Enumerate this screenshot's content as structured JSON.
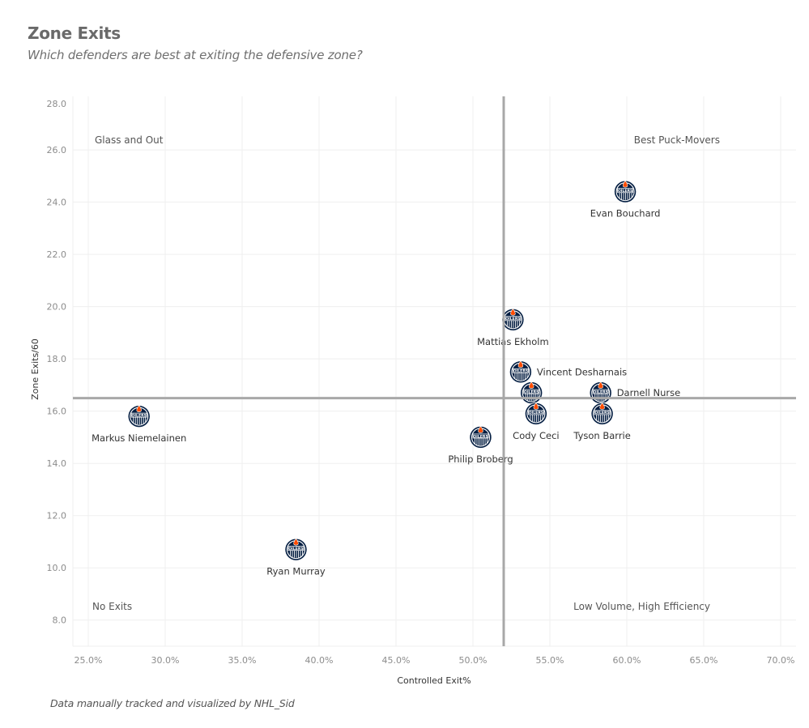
{
  "header": {
    "title": "Zone Exits",
    "subtitle": "Which defenders are best at exiting the defensive zone?"
  },
  "footer": {
    "credit": "Data manually tracked  and visualized by NHL_Sid"
  },
  "colors": {
    "logo_navy": "#041E42",
    "logo_orange": "#FF4C00",
    "reference_line": "#a8a8a8",
    "gridline": "#efefef"
  },
  "chart_data": {
    "type": "scatter",
    "title": "Zone Exits",
    "subtitle": "Which defenders are best at exiting the defensive zone?",
    "xlabel": "Controlled Exit%",
    "ylabel": "Zone Exits/60",
    "xlim": [
      24.0,
      71.0
    ],
    "ylim": [
      7.0,
      28.05
    ],
    "x_ticks": [
      25,
      30,
      35,
      40,
      45,
      50,
      55,
      60,
      65,
      70
    ],
    "x_tick_labels": [
      "25.0%",
      "30.0%",
      "35.0%",
      "40.0%",
      "45.0%",
      "50.0%",
      "55.0%",
      "60.0%",
      "65.0%",
      "70.0%"
    ],
    "y_ticks": [
      8,
      10,
      12,
      14,
      16,
      18,
      20,
      22,
      24,
      26,
      28
    ],
    "y_tick_labels": [
      "8.0",
      "10.0",
      "12.0",
      "14.0",
      "16.0",
      "18.0",
      "20.0",
      "22.0",
      "24.0",
      "26.0",
      "28.0"
    ],
    "grid": true,
    "marker": "oilers-logo",
    "reference_lines": {
      "x": 52.0,
      "y": 16.5
    },
    "quadrant_labels": [
      {
        "text": "Glass and Out",
        "position": "top-left"
      },
      {
        "text": "Best Puck-Movers",
        "position": "top-right"
      },
      {
        "text": "No Exits",
        "position": "bottom-left"
      },
      {
        "text": "Low Volume, High Efficiency",
        "position": "bottom-right"
      }
    ],
    "points": [
      {
        "name": "Evan Bouchard",
        "x": 59.9,
        "y": 24.4,
        "label_pos": "below"
      },
      {
        "name": "Mattias Ekholm",
        "x": 52.6,
        "y": 19.5,
        "label_pos": "below"
      },
      {
        "name": "Vincent Desharnais",
        "x": 53.1,
        "y": 17.5,
        "label_pos": "right"
      },
      {
        "name": "",
        "x": 53.8,
        "y": 16.7,
        "label_pos": "none"
      },
      {
        "name": "Darnell Nurse",
        "x": 58.3,
        "y": 16.7,
        "label_pos": "right"
      },
      {
        "name": "Cody Ceci",
        "x": 54.1,
        "y": 15.9,
        "label_pos": "below"
      },
      {
        "name": "Tyson Barrie",
        "x": 58.4,
        "y": 15.9,
        "label_pos": "below"
      },
      {
        "name": "Philip Broberg",
        "x": 50.5,
        "y": 15.0,
        "label_pos": "below"
      },
      {
        "name": "Markus Niemelainen",
        "x": 28.3,
        "y": 15.8,
        "label_pos": "below"
      },
      {
        "name": "Ryan Murray",
        "x": 38.5,
        "y": 10.7,
        "label_pos": "below"
      }
    ]
  }
}
